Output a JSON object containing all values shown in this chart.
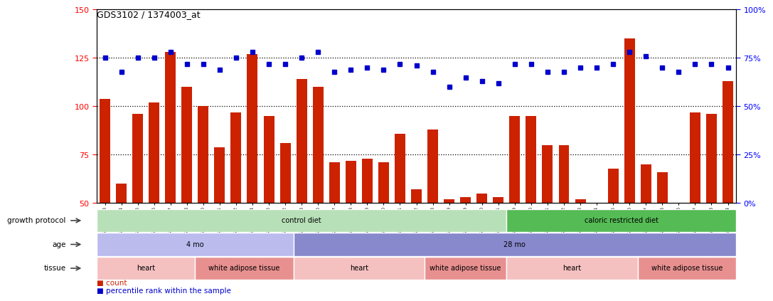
{
  "title": "GDS3102 / 1374003_at",
  "samples": [
    "GSM154903",
    "GSM154904",
    "GSM154905",
    "GSM154906",
    "GSM154907",
    "GSM154908",
    "GSM154920",
    "GSM154921",
    "GSM154922",
    "GSM154924",
    "GSM154925",
    "GSM154932",
    "GSM154933",
    "GSM154896",
    "GSM154897",
    "GSM154898",
    "GSM154899",
    "GSM154900",
    "GSM154901",
    "GSM154902",
    "GSM154918",
    "GSM154919",
    "GSM154929",
    "GSM154930",
    "GSM154931",
    "GSM154909",
    "GSM154910",
    "GSM154911",
    "GSM154912",
    "GSM154913",
    "GSM154914",
    "GSM154915",
    "GSM154916",
    "GSM154917",
    "GSM154923",
    "GSM154926",
    "GSM154927",
    "GSM154928",
    "GSM154934"
  ],
  "counts": [
    104,
    60,
    96,
    102,
    128,
    110,
    100,
    79,
    97,
    127,
    95,
    81,
    114,
    110,
    71,
    72,
    73,
    71,
    86,
    57,
    88,
    52,
    53,
    55,
    53,
    95,
    95,
    80,
    80,
    52,
    50,
    68,
    135,
    70,
    66,
    50,
    97,
    96,
    113
  ],
  "percentiles": [
    75,
    68,
    75,
    75,
    78,
    72,
    72,
    69,
    75,
    78,
    72,
    72,
    75,
    78,
    68,
    69,
    70,
    69,
    72,
    71,
    68,
    60,
    65,
    63,
    62,
    72,
    72,
    68,
    68,
    70,
    70,
    72,
    78,
    76,
    70,
    68,
    72,
    72,
    70
  ],
  "ylim_left": [
    50,
    150
  ],
  "ylim_right": [
    0,
    100
  ],
  "bar_color": "#cc2200",
  "dot_color": "#0000cc",
  "bg_color": "#ffffff",
  "yticks_left": [
    50,
    75,
    100,
    125,
    150
  ],
  "yticks_right": [
    0,
    25,
    50,
    75,
    100
  ],
  "growth_protocol_labels": [
    {
      "text": "control diet",
      "start": 0,
      "end": 25,
      "color": "#b8e0b8"
    },
    {
      "text": "caloric restricted diet",
      "start": 25,
      "end": 39,
      "color": "#55bb55"
    }
  ],
  "age_labels": [
    {
      "text": "4 mo",
      "start": 0,
      "end": 12,
      "color": "#bbbbee"
    },
    {
      "text": "28 mo",
      "start": 12,
      "end": 39,
      "color": "#8888cc"
    }
  ],
  "tissue_labels": [
    {
      "text": "heart",
      "start": 0,
      "end": 6,
      "color": "#f5c0c0"
    },
    {
      "text": "white adipose tissue",
      "start": 6,
      "end": 12,
      "color": "#e89090"
    },
    {
      "text": "heart",
      "start": 12,
      "end": 20,
      "color": "#f5c0c0"
    },
    {
      "text": "white adipose tissue",
      "start": 20,
      "end": 25,
      "color": "#e89090"
    },
    {
      "text": "heart",
      "start": 25,
      "end": 33,
      "color": "#f5c0c0"
    },
    {
      "text": "white adipose tissue",
      "start": 33,
      "end": 39,
      "color": "#e89090"
    }
  ]
}
